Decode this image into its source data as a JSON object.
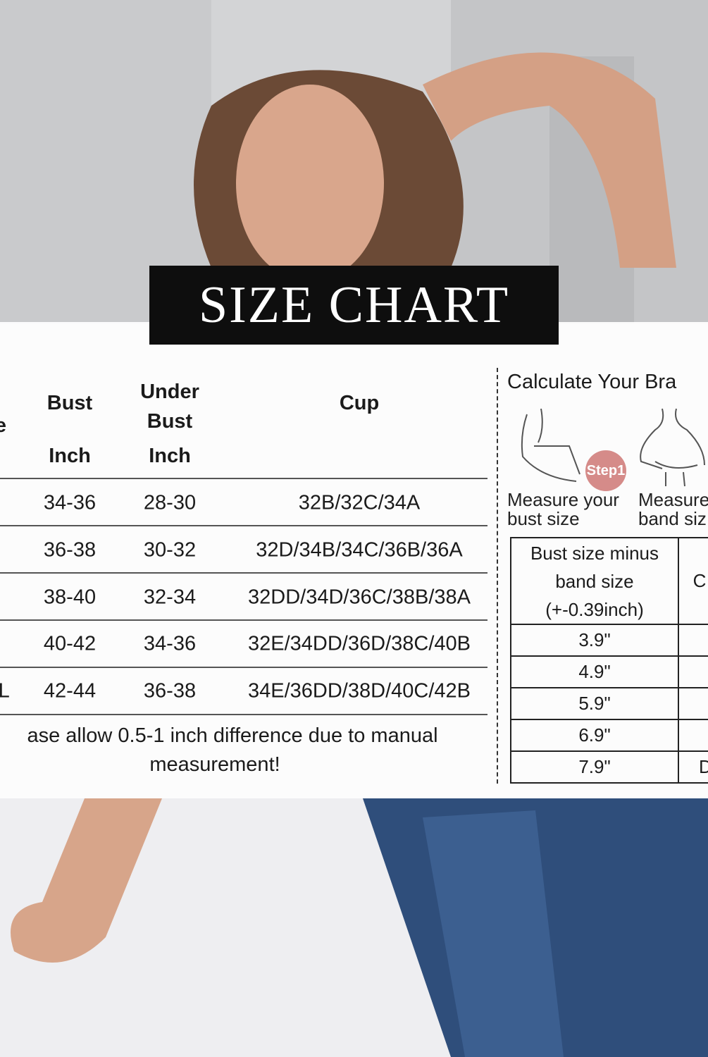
{
  "title": "SIZE CHART",
  "size_table": {
    "headers": {
      "size": "Size",
      "bust": "Bust",
      "bust_unit": "Inch",
      "under_bust": "Under Bust",
      "under_bust_unit": "Inch",
      "cup": "Cup"
    },
    "rows": [
      {
        "size": "",
        "bust": "34-36",
        "under_bust": "28-30",
        "cup": "32B/32C/34A"
      },
      {
        "size": "",
        "bust": "36-38",
        "under_bust": "30-32",
        "cup": "32D/34B/34C/36B/36A"
      },
      {
        "size": "",
        "bust": "38-40",
        "under_bust": "32-34",
        "cup": "32DD/34D/36C/38B/38A"
      },
      {
        "size": "",
        "bust": "40-42",
        "under_bust": "34-36",
        "cup": "32E/34DD/36D/38C/40B"
      },
      {
        "size": "XL",
        "bust": "42-44",
        "under_bust": "36-38",
        "cup": "34E/36DD/38D/40C/42B"
      }
    ],
    "note_line1": "ase allow 0.5-1 inch difference due to manual",
    "note_line2": "measurement!"
  },
  "calculator": {
    "title": "Calculate Your Bra",
    "step_badge": "Step1",
    "step_color": "#d58b89",
    "caption_bust_1": "Measure your",
    "caption_bust_2": "bust size",
    "caption_band_1": "Measure",
    "caption_band_2": "band siz",
    "table_header": "Bust size minus band size (+-0.39inch)",
    "table_header2": "C",
    "rows": [
      {
        "diff": "3.9\"",
        "cup": ""
      },
      {
        "diff": "4.9\"",
        "cup": ""
      },
      {
        "diff": "5.9\"",
        "cup": ""
      },
      {
        "diff": "6.9\"",
        "cup": ""
      },
      {
        "diff": "7.9\"",
        "cup": "D"
      }
    ]
  }
}
